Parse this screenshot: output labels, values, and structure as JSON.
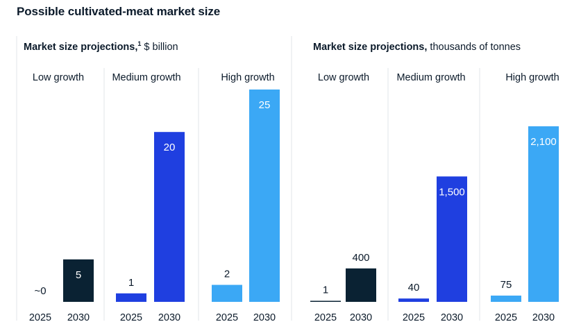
{
  "title": "Possible cultivated-meat market size",
  "panels": [
    {
      "subtitle_bold": "Market size projections,",
      "footnote": "1",
      "subtitle_rest": " $ billion"
    },
    {
      "subtitle_bold": "Market size projections,",
      "footnote": "",
      "subtitle_rest": " thousands of tonnes"
    }
  ],
  "chart_data": [
    {
      "type": "bar",
      "title": "Market size projections, $ billion",
      "groups": [
        "Low growth",
        "Medium growth",
        "High growth"
      ],
      "categories": [
        "2025",
        "2030"
      ],
      "values": [
        [
          0,
          5
        ],
        [
          1,
          20
        ],
        [
          2,
          25
        ]
      ],
      "labels": [
        [
          "~0",
          "5"
        ],
        [
          "1",
          "20"
        ],
        [
          "2",
          "25"
        ]
      ],
      "ylim": [
        0,
        25
      ],
      "colors": [
        [
          "#0a2233",
          "#0a2233"
        ],
        [
          "#1f3fe0",
          "#1f3fe0"
        ],
        [
          "#3ba8f5",
          "#3ba8f5"
        ]
      ]
    },
    {
      "type": "bar",
      "title": "Market size projections, thousands of tonnes",
      "groups": [
        "Low growth",
        "Medium growth",
        "High growth"
      ],
      "categories": [
        "2025",
        "2030"
      ],
      "values": [
        [
          1,
          400
        ],
        [
          40,
          1500
        ],
        [
          75,
          2100
        ]
      ],
      "labels": [
        [
          "1",
          "400"
        ],
        [
          "40",
          "1,500"
        ],
        [
          "75",
          "2,100"
        ]
      ],
      "ylim": [
        0,
        2100
      ],
      "colors": [
        [
          "#0a2233",
          "#0a2233"
        ],
        [
          "#1f3fe0",
          "#1f3fe0"
        ],
        [
          "#3ba8f5",
          "#3ba8f5"
        ]
      ]
    }
  ]
}
